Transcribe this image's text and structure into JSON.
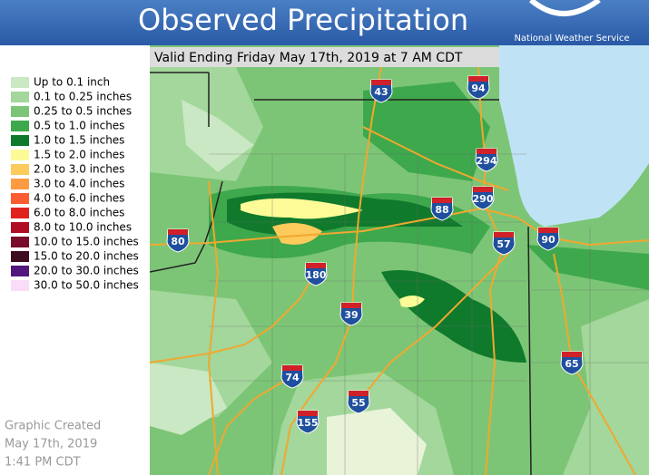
{
  "header": {
    "title": "Observed Precipitation",
    "agency": "National Weather Service"
  },
  "valid": "Valid Ending Friday May 17th, 2019 at 7 AM CDT",
  "legend": [
    {
      "label": "Up to 0.1 inch",
      "color": "#c9e8c3"
    },
    {
      "label": "0.1 to 0.25 inches",
      "color": "#a3d79b"
    },
    {
      "label": "0.25 to 0.5 inches",
      "color": "#7cc576"
    },
    {
      "label": "0.5 to 1.0 inches",
      "color": "#3ea84c"
    },
    {
      "label": "1.0 to 1.5 inches",
      "color": "#107a2c"
    },
    {
      "label": "1.5 to 2.0 inches",
      "color": "#fcfb98"
    },
    {
      "label": "2.0 to 3.0 inches",
      "color": "#fdca5c"
    },
    {
      "label": "3.0 to 4.0 inches",
      "color": "#fd9a42"
    },
    {
      "label": "4.0 to 6.0 inches",
      "color": "#fc5c32"
    },
    {
      "label": "6.0 to 8.0 inches",
      "color": "#e0221f"
    },
    {
      "label": "8.0 to 10.0 inches",
      "color": "#b00c24"
    },
    {
      "label": "10.0 to 15.0 inches",
      "color": "#780c2a"
    },
    {
      "label": "15.0 to 20.0 inches",
      "color": "#3e0c20"
    },
    {
      "label": "20.0 to 30.0 inches",
      "color": "#52167c"
    },
    {
      "label": "30.0 to 50.0 inches",
      "color": "#fadcf8"
    }
  ],
  "interstates": [
    "43",
    "94",
    "294",
    "290",
    "88",
    "57",
    "90",
    "80",
    "180",
    "39",
    "74",
    "55",
    "155",
    "65"
  ],
  "footer": [
    "Graphic Created",
    "May 17th, 2019",
    "1:41 PM CDT"
  ]
}
